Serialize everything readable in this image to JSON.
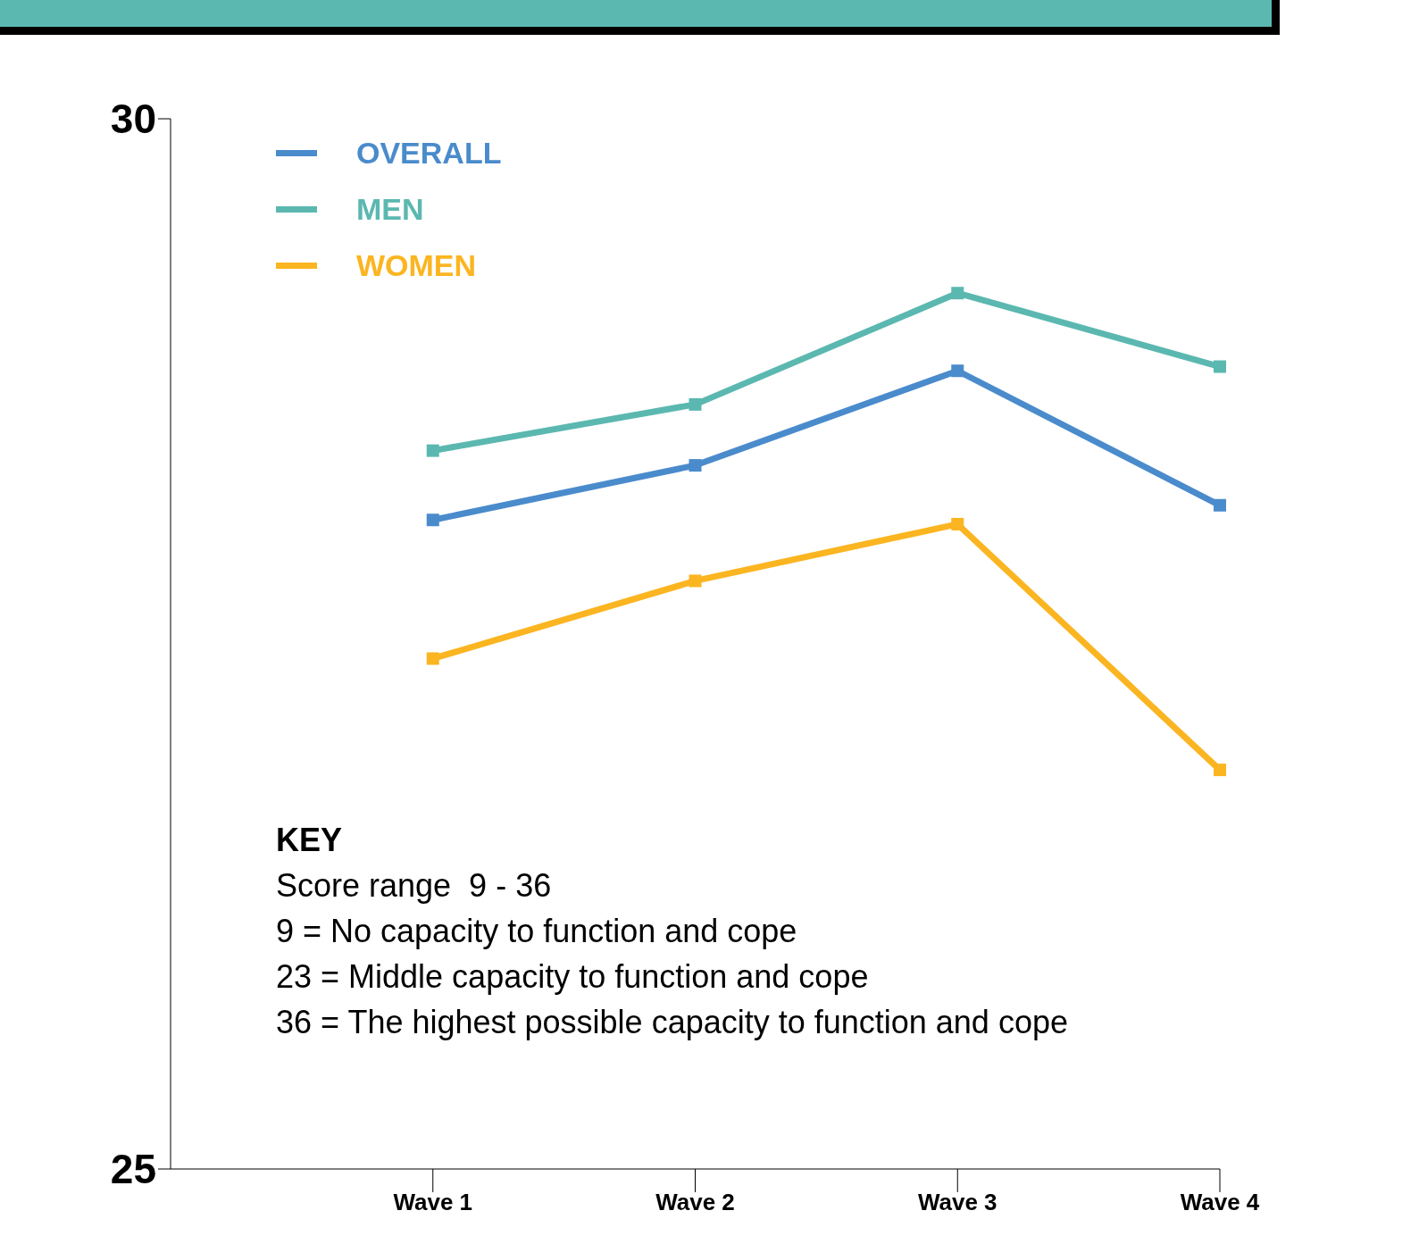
{
  "chart_data": {
    "type": "line",
    "categories": [
      "Wave 1",
      "Wave 2",
      "Wave 3",
      "Wave 4"
    ],
    "ylim": [
      25,
      30
    ],
    "yticks": [
      25,
      30
    ],
    "grid": false,
    "legend": "top left",
    "marker": "square",
    "line_style": "solid",
    "series": [
      {
        "name": "OVERALL",
        "color": "#4a8bcc",
        "values": [
          28.09,
          28.35,
          28.8,
          28.16
        ]
      },
      {
        "name": "MEN",
        "color": "#5bb8b0",
        "values": [
          28.42,
          28.64,
          29.17,
          28.82
        ]
      },
      {
        "name": "WOMEN",
        "color": "#fbb521",
        "values": [
          27.43,
          27.8,
          28.07,
          26.9
        ]
      }
    ],
    "annotations": [
      "KEY",
      "Score range  9 - 36",
      "9 = No capacity to function and cope",
      "23 = Middle capacity to function and cope",
      "36 = The highest possible capacity to function and cope"
    ]
  }
}
